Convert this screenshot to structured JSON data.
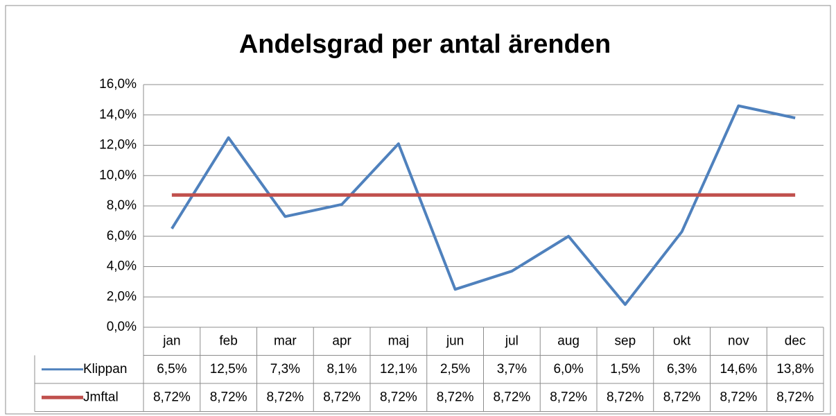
{
  "chart_data": {
    "type": "line",
    "title": "Andelsgrad per antal ärenden",
    "categories": [
      "jan",
      "feb",
      "mar",
      "apr",
      "maj",
      "jun",
      "jul",
      "aug",
      "sep",
      "okt",
      "nov",
      "dec"
    ],
    "series": [
      {
        "name": "Klippan",
        "color": "#4f81bd",
        "values": [
          6.5,
          12.5,
          7.3,
          8.1,
          12.1,
          2.5,
          3.7,
          6.0,
          1.5,
          6.3,
          14.6,
          13.8
        ],
        "value_labels": [
          "6,5%",
          "12,5%",
          "7,3%",
          "8,1%",
          "12,1%",
          "2,5%",
          "3,7%",
          "6,0%",
          "1,5%",
          "6,3%",
          "14,6%",
          "13,8%"
        ]
      },
      {
        "name": "Jmftal",
        "color": "#c0504d",
        "values": [
          8.72,
          8.72,
          8.72,
          8.72,
          8.72,
          8.72,
          8.72,
          8.72,
          8.72,
          8.72,
          8.72,
          8.72
        ],
        "value_labels": [
          "8,72%",
          "8,72%",
          "8,72%",
          "8,72%",
          "8,72%",
          "8,72%",
          "8,72%",
          "8,72%",
          "8,72%",
          "8,72%",
          "8,72%",
          "8,72%"
        ]
      }
    ],
    "ylim": [
      0,
      16
    ],
    "yticks": [
      {
        "value": 0,
        "label": "0,0%"
      },
      {
        "value": 2,
        "label": "2,0%"
      },
      {
        "value": 4,
        "label": "4,0%"
      },
      {
        "value": 6,
        "label": "6,0%"
      },
      {
        "value": 8,
        "label": "8,0%"
      },
      {
        "value": 10,
        "label": "10,0%"
      },
      {
        "value": 12,
        "label": "12,0%"
      },
      {
        "value": 14,
        "label": "14,0%"
      },
      {
        "value": 16,
        "label": "16,0%"
      }
    ],
    "grid": true
  }
}
